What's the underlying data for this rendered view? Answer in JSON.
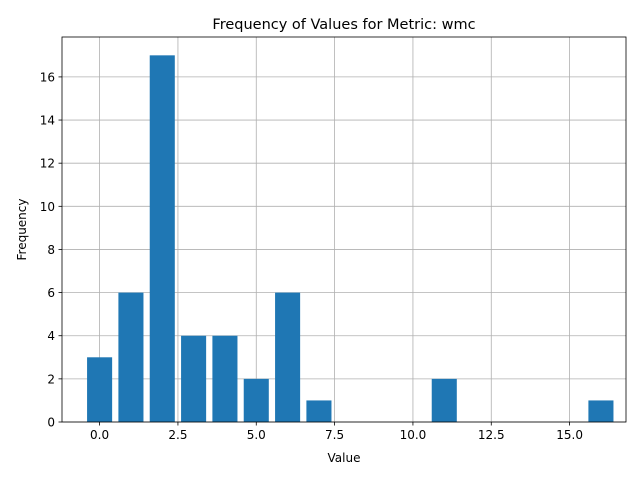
{
  "chart_data": {
    "type": "bar",
    "title": "Frequency of Values for Metric: wmc",
    "xlabel": "Value",
    "ylabel": "Frequency",
    "x": [
      0,
      1,
      2,
      3,
      4,
      5,
      6,
      7,
      11,
      16
    ],
    "values": [
      3,
      6,
      17,
      4,
      4,
      2,
      6,
      1,
      2,
      1
    ],
    "bar_width": 0.8,
    "xlim": [
      -1.2,
      16.8
    ],
    "ylim": [
      0,
      17.85
    ],
    "xticks": [
      0.0,
      2.5,
      5.0,
      7.5,
      10.0,
      12.5,
      15.0
    ],
    "xtick_labels": [
      "0.0",
      "2.5",
      "5.0",
      "7.5",
      "10.0",
      "12.5",
      "15.0"
    ],
    "yticks": [
      0,
      2,
      4,
      6,
      8,
      10,
      12,
      14,
      16
    ],
    "ytick_labels": [
      "0",
      "2",
      "4",
      "6",
      "8",
      "10",
      "12",
      "14",
      "16"
    ],
    "grid": true,
    "colors": {
      "bar": "#1f77b4",
      "grid": "#b0b0b0",
      "axis": "#000000"
    }
  }
}
